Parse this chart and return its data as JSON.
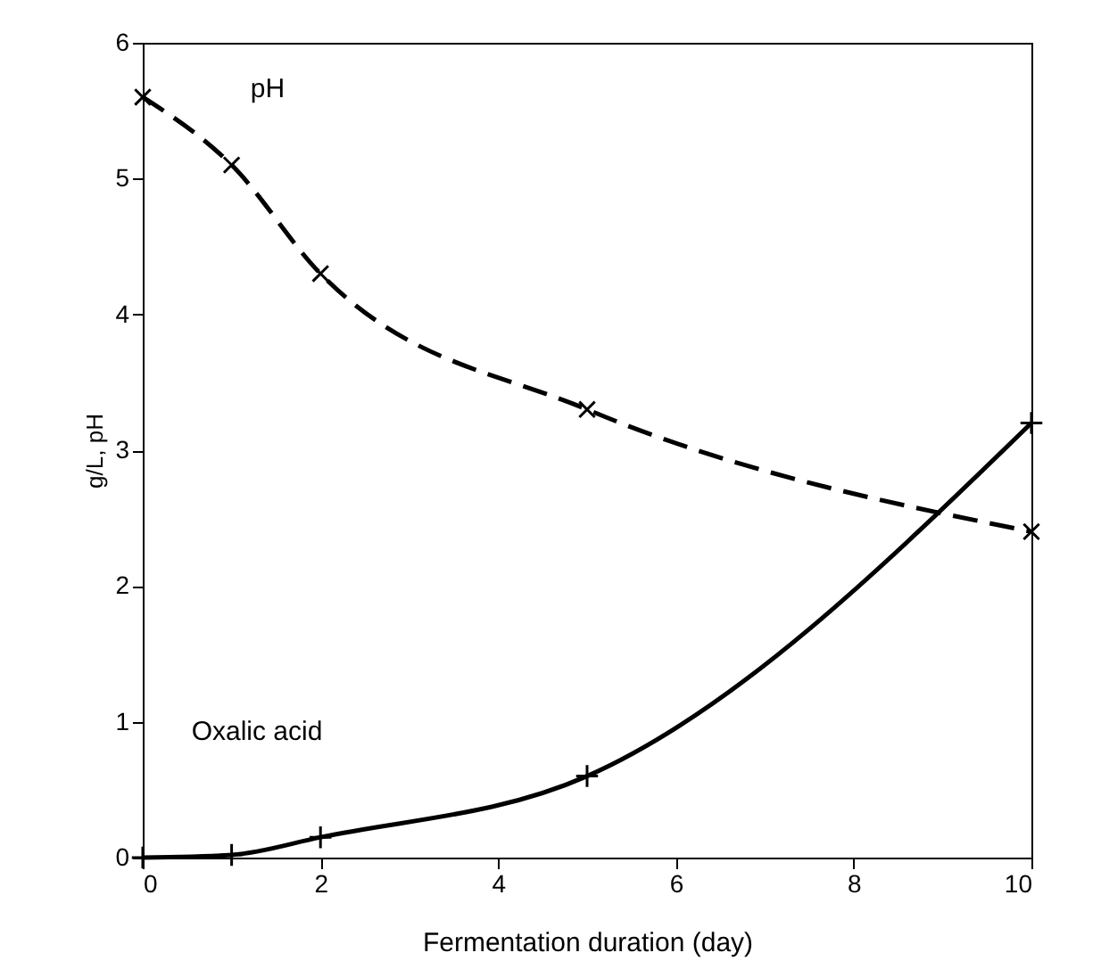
{
  "chart_data": {
    "type": "line",
    "xlabel": "Fermentation duration (day)",
    "ylabel": "g/L, pH",
    "xlim": [
      0,
      10
    ],
    "xticks": [
      0,
      2,
      4,
      6,
      8,
      10
    ],
    "ylim": [
      0,
      6
    ],
    "yticks": [
      0,
      1,
      2,
      3,
      4,
      5,
      6
    ],
    "grid": false,
    "series": [
      {
        "name": "pH",
        "x": [
          0,
          1,
          2,
          5,
          10
        ],
        "values": [
          5.6,
          5.1,
          4.3,
          3.3,
          2.4
        ],
        "color": "#000000",
        "line_style": "dashed",
        "marker": "cross"
      },
      {
        "name": "Oxalic acid",
        "x": [
          0,
          1,
          2,
          5,
          10
        ],
        "values": [
          0,
          0.02,
          0.15,
          0.6,
          3.2
        ],
        "color": "#000000",
        "line_style": "solid",
        "marker": "cross"
      }
    ]
  }
}
